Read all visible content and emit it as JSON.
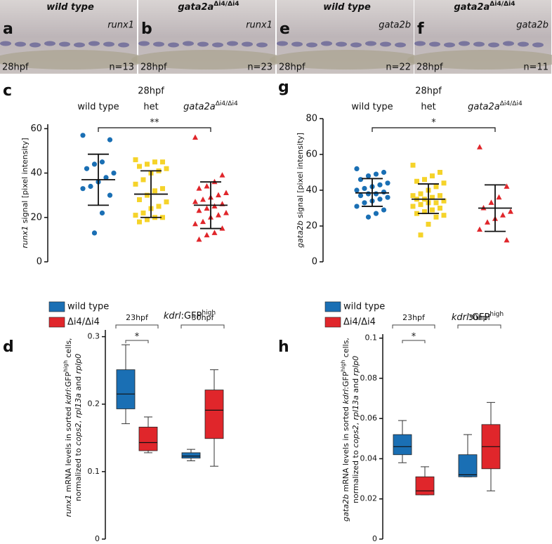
{
  "images": [
    {
      "letter": "a",
      "genotype": [
        {
          "text": "wild type",
          "style": "i"
        }
      ],
      "gene": "runx1",
      "stage": "28hpf",
      "n": "n=13"
    },
    {
      "letter": "b",
      "genotype": [
        {
          "text": "gata2a",
          "style": "i"
        },
        {
          "text": "Δi4/Δi4",
          "style": "sup"
        }
      ],
      "gene": "runx1",
      "stage": "28hpf",
      "n": "n=23"
    },
    {
      "letter": "e",
      "genotype": [
        {
          "text": "wild type",
          "style": "i"
        }
      ],
      "gene": "gata2b",
      "stage": "28hpf",
      "n": "n=22"
    },
    {
      "letter": "f",
      "genotype": [
        {
          "text": "gata2a",
          "style": "i"
        },
        {
          "text": "Δi4/Δi4",
          "style": "sup"
        }
      ],
      "gene": "gata2b",
      "stage": "28hpf",
      "n": "n=11"
    }
  ],
  "chart_data": [
    {
      "type": "dotplot",
      "letter": "c",
      "title": "28hpf",
      "significance": "**",
      "ylabel": [
        {
          "text": "runx1",
          "style": "i"
        },
        {
          "text": " signal [pixel intensity]"
        }
      ],
      "ylim": [
        0,
        62
      ],
      "yticks": [
        0,
        20,
        40,
        60
      ],
      "groups": [
        {
          "name": [
            {
              "text": "wild type"
            }
          ],
          "color": "#1a6fb4",
          "marker": "circle",
          "values": [
            57,
            55,
            45,
            44,
            42,
            40,
            38,
            36,
            34,
            33,
            30,
            22,
            13
          ],
          "mean": 37,
          "sd_range": [
            25.5,
            48.5
          ]
        },
        {
          "name": [
            {
              "text": "het"
            }
          ],
          "color": "#f5d32a",
          "marker": "square",
          "values": [
            46,
            45,
            45,
            44,
            43,
            42,
            41,
            40,
            37,
            35,
            33,
            32,
            30,
            28,
            27,
            25,
            24,
            22,
            21,
            20,
            20,
            19,
            18
          ],
          "mean": 30.5,
          "sd_range": [
            20,
            41
          ]
        },
        {
          "name": [
            {
              "text": "gata2a",
              "style": "i"
            },
            {
              "text": "Δi4/Δi4",
              "style": "sup"
            }
          ],
          "color": "#e0262b",
          "marker": "triangle",
          "values": [
            56,
            39,
            36,
            34,
            33,
            31,
            30,
            29,
            28,
            27,
            26,
            25,
            24,
            23,
            22,
            21,
            20,
            18,
            17,
            15,
            13,
            12,
            10
          ],
          "mean": 25.5,
          "sd_range": [
            15,
            36
          ]
        }
      ]
    },
    {
      "type": "dotplot",
      "letter": "g",
      "title": "28hpf",
      "significance": "*",
      "ylabel": [
        {
          "text": "gata2b",
          "style": "i"
        },
        {
          "text": " signal [pixel intensity]"
        }
      ],
      "ylim": [
        0,
        80
      ],
      "yticks": [
        0,
        20,
        40,
        60,
        80
      ],
      "groups": [
        {
          "name": [
            {
              "text": "wild type"
            }
          ],
          "color": "#1a6fb4",
          "marker": "circle",
          "values": [
            52,
            50,
            49,
            48,
            46,
            44,
            43,
            42,
            41,
            40,
            39,
            38,
            38,
            37,
            36,
            35,
            34,
            33,
            31,
            29,
            27,
            25
          ],
          "mean": 38.5,
          "sd_range": [
            31,
            46.5
          ]
        },
        {
          "name": [
            {
              "text": "het"
            }
          ],
          "color": "#f5d32a",
          "marker": "square",
          "values": [
            54,
            50,
            48,
            46,
            45,
            44,
            42,
            40,
            38,
            37,
            37,
            36,
            35,
            35,
            34,
            33,
            33,
            32,
            31,
            30,
            29,
            28,
            27,
            26,
            25,
            21,
            15
          ],
          "mean": 35,
          "sd_range": [
            27,
            43.5
          ]
        },
        {
          "name": [
            {
              "text": "gata2a",
              "style": "i"
            },
            {
              "text": "Δi4/Δi4",
              "style": "sup"
            }
          ],
          "color": "#e0262b",
          "marker": "triangle",
          "values": [
            64,
            42,
            36,
            33,
            30,
            28,
            26,
            24,
            22,
            18,
            12
          ],
          "mean": 30,
          "sd_range": [
            17,
            43
          ]
        }
      ]
    },
    {
      "type": "box",
      "letter": "d",
      "title": [
        {
          "text": "kdrl",
          "style": "i"
        },
        {
          "text": ":GFP"
        },
        {
          "text": "high",
          "style": "sup"
        }
      ],
      "ylabel_lines": [
        [
          {
            "text": "runx1",
            "style": "i"
          },
          {
            "text": " mRNA levels in sorted "
          },
          {
            "text": "kdrl",
            "style": "i"
          },
          {
            "text": ":GFP"
          },
          {
            "text": "high",
            "style": "sup"
          },
          {
            "text": " cells,"
          }
        ],
        [
          {
            "text": "normalized to "
          },
          {
            "text": "cops2",
            "style": "i"
          },
          {
            "text": ", "
          },
          {
            "text": "rpl13a",
            "style": "i"
          },
          {
            "text": " and "
          },
          {
            "text": "rplp0",
            "style": "i"
          }
        ]
      ],
      "ylim": [
        0,
        0.31
      ],
      "yticks": [
        0,
        0.1,
        0.2,
        0.3
      ],
      "series": [
        {
          "name": "wild type",
          "color": "#1a6fb4"
        },
        {
          "name": "Δi4/Δi4",
          "color": "#e0262b"
        }
      ],
      "groups": [
        {
          "name": "23hpf",
          "significance": "*",
          "boxes": [
            [
              0.171,
              0.193,
              0.215,
              0.251,
              0.288
            ],
            [
              0.128,
              0.131,
              0.143,
              0.166,
              0.181
            ]
          ]
        },
        {
          "name": "30hpf",
          "boxes": [
            [
              0.116,
              0.12,
              0.123,
              0.128,
              0.133
            ],
            [
              0.108,
              0.149,
              0.191,
              0.221,
              0.251
            ]
          ]
        }
      ]
    },
    {
      "type": "box",
      "letter": "h",
      "title": [
        {
          "text": "kdrl",
          "style": "i"
        },
        {
          "text": ":GFP"
        },
        {
          "text": "high",
          "style": "sup"
        }
      ],
      "ylabel_lines": [
        [
          {
            "text": "gata2b",
            "style": "i"
          },
          {
            "text": " mRNA levels in sorted "
          },
          {
            "text": "kdrl",
            "style": "i"
          },
          {
            "text": ":GFP"
          },
          {
            "text": "high",
            "style": "sup"
          },
          {
            "text": " cells,"
          }
        ],
        [
          {
            "text": "normalized to "
          },
          {
            "text": "cops2",
            "style": "i"
          },
          {
            "text": ", "
          },
          {
            "text": "rpl13a",
            "style": "i"
          },
          {
            "text": " and "
          },
          {
            "text": "rplp0",
            "style": "i"
          }
        ]
      ],
      "ylim": [
        0,
        0.102
      ],
      "yticks": [
        0,
        0.02,
        0.04,
        0.06,
        0.08,
        0.1
      ],
      "series": [
        {
          "name": "wild type",
          "color": "#1a6fb4"
        },
        {
          "name": "Δi4/Δi4",
          "color": "#e0262b"
        }
      ],
      "groups": [
        {
          "name": "23hpf",
          "significance": "*",
          "boxes": [
            [
              0.038,
              0.042,
              0.046,
              0.052,
              0.059
            ],
            [
              0.022,
              0.022,
              0.024,
              0.031,
              0.036
            ]
          ]
        },
        {
          "name": "30hpf",
          "boxes": [
            [
              0.031,
              0.031,
              0.032,
              0.042,
              0.052
            ],
            [
              0.024,
              0.035,
              0.046,
              0.057,
              0.068
            ]
          ]
        }
      ]
    }
  ]
}
